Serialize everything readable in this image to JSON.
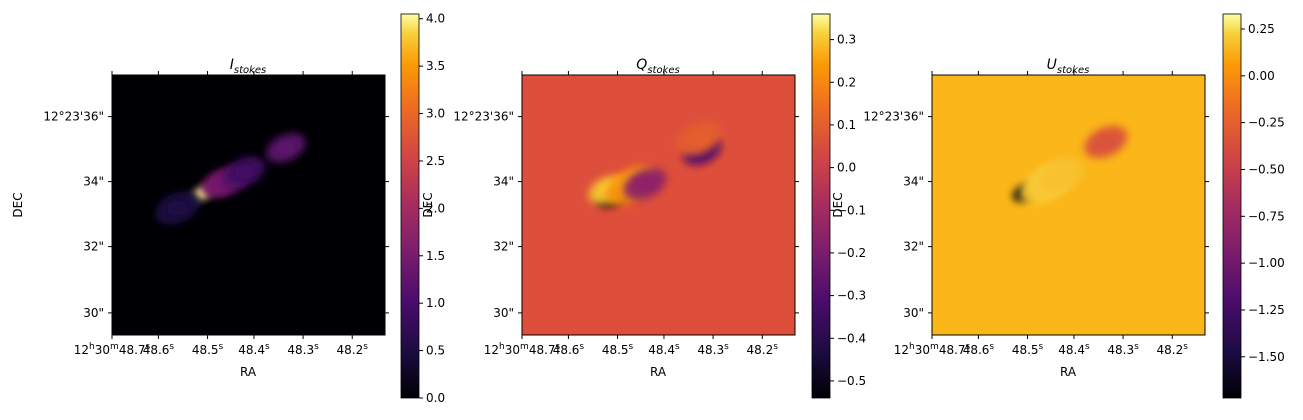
{
  "chart_data": [
    {
      "type": "heatmap",
      "title_main": "I",
      "title_sub": "stokes",
      "xlabel": "RA",
      "ylabel": "DEC",
      "x_ticks": [
        "12h30m48.7s",
        "48.6s",
        "48.5s",
        "48.4s",
        "48.3s",
        "48.2s"
      ],
      "y_ticks": [
        "12°23'36\"",
        "34\"",
        "32\"",
        "30\""
      ],
      "colorbar": {
        "cmap": "inferno",
        "vmin": 0.0,
        "vmax": 4.05,
        "ticks": [
          "0.0",
          "0.5",
          "1.0",
          "1.5",
          "2.0",
          "2.5",
          "3.0",
          "3.5",
          "4.0"
        ],
        "tick_values": [
          0.0,
          0.5,
          1.0,
          1.5,
          2.0,
          2.5,
          3.0,
          3.5,
          4.0
        ]
      },
      "background_value": 0.0,
      "features": [
        {
          "ra_offset": 0.82,
          "dec_offset": 0.34,
          "value": 4.0
        },
        {
          "ra_offset": 0.55,
          "dec_offset": 0.5,
          "value": 1.6
        },
        {
          "ra_offset": 0.4,
          "dec_offset": 0.55,
          "value": 1.4
        },
        {
          "ra_offset": 0.15,
          "dec_offset": 0.7,
          "value": 0.9
        },
        {
          "ra_offset": -0.5,
          "dec_offset": 1.1,
          "value": 1.2
        },
        {
          "ra_offset": 1.2,
          "dec_offset": 0.1,
          "value": 0.5
        }
      ]
    },
    {
      "type": "heatmap",
      "title_main": "Q",
      "title_sub": "stokes",
      "xlabel": "RA",
      "ylabel": "DEC",
      "x_ticks": [
        "12h30m48.7s",
        "48.6s",
        "48.5s",
        "48.4s",
        "48.3s",
        "48.2s"
      ],
      "y_ticks": [
        "12°23'36\"",
        "34\"",
        "32\"",
        "30\""
      ],
      "colorbar": {
        "cmap": "inferno",
        "vmin": -0.54,
        "vmax": 0.36,
        "ticks": [
          "0.3",
          "0.2",
          "0.1",
          "0.0",
          "−0.1",
          "−0.2",
          "−0.3",
          "−0.4",
          "−0.5"
        ],
        "tick_values": [
          0.3,
          0.2,
          0.1,
          0.0,
          -0.1,
          -0.2,
          -0.3,
          -0.4,
          -0.5
        ]
      },
      "background_value": 0.0,
      "features": [
        {
          "ra_offset": 0.82,
          "dec_offset": 0.3,
          "value": -0.53
        },
        {
          "ra_offset": 0.88,
          "dec_offset": 0.4,
          "value": 0.3
        },
        {
          "ra_offset": 0.6,
          "dec_offset": 0.4,
          "value": 0.22
        },
        {
          "ra_offset": 0.45,
          "dec_offset": 0.55,
          "value": 0.25
        },
        {
          "ra_offset": 0.3,
          "dec_offset": 0.5,
          "value": -0.15
        },
        {
          "ra_offset": -0.6,
          "dec_offset": 1.05,
          "value": -0.3
        },
        {
          "ra_offset": -0.55,
          "dec_offset": 1.25,
          "value": 0.1
        }
      ]
    },
    {
      "type": "heatmap",
      "title_main": "U",
      "title_sub": "stokes",
      "xlabel": "RA",
      "ylabel": "DEC",
      "x_ticks": [
        "12h30m48.7s",
        "48.6s",
        "48.5s",
        "48.4s",
        "48.3s",
        "48.2s"
      ],
      "y_ticks": [
        "12°23'36\"",
        "34\"",
        "32\"",
        "30\""
      ],
      "colorbar": {
        "cmap": "inferno",
        "vmin": -1.72,
        "vmax": 0.33,
        "ticks": [
          "0.25",
          "0.00",
          "−0.25",
          "−0.50",
          "−0.75",
          "−1.00",
          "−1.25",
          "−1.50"
        ],
        "tick_values": [
          0.25,
          0.0,
          -0.25,
          -0.5,
          -0.75,
          -1.0,
          -1.25,
          -1.5
        ]
      },
      "background_value": 0.0,
      "features": [
        {
          "ra_offset": 0.78,
          "dec_offset": 0.35,
          "value": -1.7
        },
        {
          "ra_offset": 0.35,
          "dec_offset": 0.55,
          "value": 0.25
        },
        {
          "ra_offset": 0.5,
          "dec_offset": 0.45,
          "value": 0.2
        },
        {
          "ra_offset": 0.2,
          "dec_offset": 0.65,
          "value": 0.18
        },
        {
          "ra_offset": -0.5,
          "dec_offset": 1.2,
          "value": -0.35
        }
      ]
    }
  ]
}
